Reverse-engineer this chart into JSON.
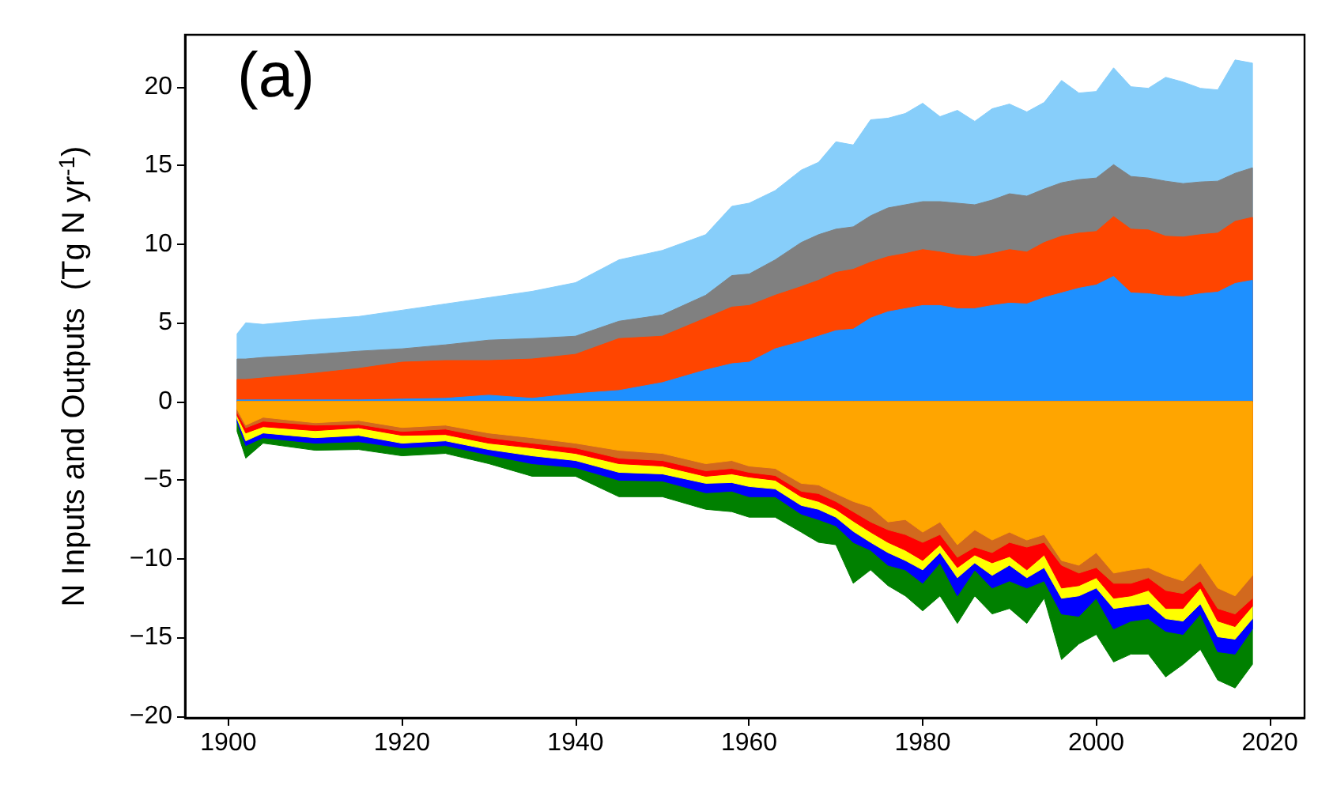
{
  "chart_data": {
    "type": "area",
    "ylabel": "N Inputs and Outputs  (Tg N yr$^{-1}$)",
    "annotations": [
      "(a)"
    ],
    "x": [
      1901,
      1902,
      1904,
      1910,
      1915,
      1920,
      1925,
      1930,
      1935,
      1940,
      1945,
      1950,
      1955,
      1958,
      1960,
      1963,
      1966,
      1968,
      1970,
      1972,
      1974,
      1976,
      1978,
      1980,
      1982,
      1984,
      1986,
      1988,
      1990,
      1992,
      1994,
      1996,
      1998,
      2000,
      2002,
      2004,
      2006,
      2008,
      2010,
      2012,
      2014,
      2016,
      2018
    ],
    "xlim": [
      1895,
      2024
    ],
    "xticks": [
      1900,
      1920,
      1940,
      1960,
      1980,
      2000,
      2020
    ],
    "ylim": [
      -20.1,
      23.3
    ],
    "yticks": [
      -20,
      -15,
      -10,
      -5,
      0,
      5,
      10,
      15,
      20
    ],
    "grid": false,
    "series": [
      {
        "color": "#87cefa",
        "values": [
          4.3,
          5.0,
          4.9,
          5.2,
          5.4,
          5.8,
          6.2,
          6.6,
          7.0,
          7.55,
          9.0,
          9.6,
          10.6,
          12.4,
          12.6,
          13.4,
          14.7,
          15.2,
          16.5,
          16.3,
          17.9,
          18.0,
          18.3,
          18.95,
          18.1,
          18.5,
          17.8,
          18.6,
          18.9,
          18.4,
          19.0,
          20.4,
          19.6,
          19.7,
          21.2,
          20.0,
          19.9,
          20.6,
          20.3,
          19.9,
          19.8,
          21.7,
          21.5
        ]
      },
      {
        "color": "#808080",
        "values": [
          2.7,
          2.7,
          2.8,
          3.0,
          3.2,
          3.35,
          3.6,
          3.9,
          4.0,
          4.15,
          5.1,
          5.5,
          6.75,
          8.0,
          8.1,
          9.0,
          10.1,
          10.6,
          10.95,
          11.1,
          11.8,
          12.3,
          12.5,
          12.7,
          12.7,
          12.6,
          12.5,
          12.8,
          13.2,
          13.05,
          13.5,
          13.9,
          14.1,
          14.2,
          15.05,
          14.3,
          14.2,
          14.0,
          13.85,
          13.95,
          14.0,
          14.5,
          14.85
        ]
      },
      {
        "color": "#ff4500",
        "values": [
          1.4,
          1.4,
          1.5,
          1.8,
          2.1,
          2.5,
          2.6,
          2.6,
          2.7,
          3.0,
          4.0,
          4.15,
          5.3,
          6.0,
          6.1,
          6.75,
          7.3,
          7.7,
          8.2,
          8.4,
          8.85,
          9.2,
          9.4,
          9.65,
          9.5,
          9.3,
          9.2,
          9.4,
          9.65,
          9.5,
          10.1,
          10.5,
          10.7,
          10.8,
          11.75,
          10.95,
          10.9,
          10.5,
          10.45,
          10.6,
          10.7,
          11.45,
          11.7
        ]
      },
      {
        "color": "#1e90ff",
        "values": [
          0.1,
          0.1,
          0.1,
          0.1,
          0.1,
          0.15,
          0.2,
          0.4,
          0.2,
          0.5,
          0.7,
          1.2,
          2.0,
          2.4,
          2.5,
          3.35,
          3.8,
          4.15,
          4.5,
          4.6,
          5.3,
          5.7,
          5.9,
          6.1,
          6.1,
          5.9,
          5.9,
          6.1,
          6.25,
          6.2,
          6.6,
          6.9,
          7.2,
          7.4,
          7.95,
          6.9,
          6.85,
          6.7,
          6.65,
          6.85,
          6.95,
          7.5,
          7.7
        ]
      },
      {
        "color": "#008000",
        "values": [
          -1.9,
          -3.6,
          -2.65,
          -3.1,
          -3.05,
          -3.45,
          -3.3,
          -3.95,
          -4.75,
          -4.75,
          -6.05,
          -6.05,
          -6.85,
          -7.0,
          -7.35,
          -7.35,
          -8.3,
          -8.95,
          -9.1,
          -11.55,
          -10.7,
          -11.7,
          -12.35,
          -13.3,
          -12.35,
          -14.1,
          -12.35,
          -13.5,
          -13.15,
          -14.1,
          -12.5,
          -16.4,
          -15.4,
          -14.8,
          -16.55,
          -16.05,
          -16.05,
          -17.5,
          -16.7,
          -15.75,
          -17.7,
          -18.2,
          -16.7
        ]
      },
      {
        "color": "#0000ff",
        "values": [
          -1.3,
          -2.8,
          -2.3,
          -2.65,
          -2.55,
          -2.95,
          -2.8,
          -3.4,
          -3.95,
          -4.2,
          -5.0,
          -5.05,
          -5.8,
          -5.7,
          -6.05,
          -6.05,
          -7.15,
          -7.5,
          -7.9,
          -8.95,
          -9.45,
          -10.4,
          -10.7,
          -11.55,
          -10.25,
          -12.35,
          -10.7,
          -11.85,
          -11.4,
          -11.85,
          -11.4,
          -13.5,
          -13.65,
          -12.5,
          -14.45,
          -13.95,
          -13.8,
          -14.6,
          -14.8,
          -13.5,
          -15.9,
          -16.05,
          -14.45
        ]
      },
      {
        "color": "#ffff00",
        "values": [
          -1.1,
          -2.5,
          -2.0,
          -2.3,
          -2.15,
          -2.65,
          -2.5,
          -3.05,
          -3.45,
          -3.75,
          -4.5,
          -4.6,
          -5.2,
          -5.15,
          -5.4,
          -5.55,
          -6.6,
          -6.85,
          -7.35,
          -8.25,
          -8.95,
          -9.6,
          -10.1,
          -10.7,
          -9.6,
          -11.2,
          -10.25,
          -11.05,
          -10.4,
          -11.2,
          -10.55,
          -12.5,
          -12.35,
          -11.85,
          -13.15,
          -13.0,
          -12.85,
          -13.8,
          -13.95,
          -12.85,
          -14.95,
          -15.1,
          -13.8
        ]
      },
      {
        "color": "#ff0000",
        "values": [
          -0.9,
          -2.0,
          -1.6,
          -1.85,
          -1.67,
          -2.15,
          -2.1,
          -2.65,
          -2.95,
          -3.3,
          -3.95,
          -4.1,
          -4.75,
          -4.6,
          -4.8,
          -5.0,
          -6.05,
          -6.35,
          -6.85,
          -7.6,
          -8.3,
          -8.95,
          -9.45,
          -10.1,
          -9.1,
          -10.55,
          -9.75,
          -10.25,
          -9.85,
          -10.7,
          -9.75,
          -11.85,
          -11.7,
          -11.2,
          -12.5,
          -12.35,
          -12.0,
          -13.15,
          -13.15,
          -11.85,
          -13.95,
          -14.3,
          -13.0
        ]
      },
      {
        "color": "#d2691e",
        "values": [
          -0.7,
          -1.67,
          -1.25,
          -1.5,
          -1.45,
          -1.9,
          -1.75,
          -2.3,
          -2.65,
          -2.95,
          -3.6,
          -3.75,
          -4.4,
          -4.25,
          -4.5,
          -4.7,
          -5.7,
          -5.85,
          -6.35,
          -7.0,
          -7.65,
          -8.15,
          -8.45,
          -8.95,
          -8.45,
          -9.9,
          -9.25,
          -9.6,
          -8.95,
          -9.25,
          -8.95,
          -10.4,
          -10.9,
          -10.55,
          -11.55,
          -11.55,
          -11.2,
          -12.0,
          -12.2,
          -11.4,
          -13.15,
          -13.5,
          -12.5
        ]
      },
      {
        "color": "#ffa500",
        "values": [
          -0.5,
          -1.5,
          -1.0,
          -1.35,
          -1.2,
          -1.65,
          -1.5,
          -2.0,
          -2.3,
          -2.65,
          -3.1,
          -3.3,
          -3.95,
          -3.75,
          -4.1,
          -4.25,
          -5.2,
          -5.3,
          -5.85,
          -6.35,
          -6.7,
          -7.65,
          -7.5,
          -8.3,
          -7.65,
          -9.1,
          -8.15,
          -8.8,
          -8.3,
          -8.8,
          -8.45,
          -10.1,
          -10.4,
          -9.6,
          -10.9,
          -10.7,
          -10.55,
          -11.05,
          -11.4,
          -10.25,
          -11.85,
          -12.35,
          -11.05
        ]
      }
    ]
  }
}
